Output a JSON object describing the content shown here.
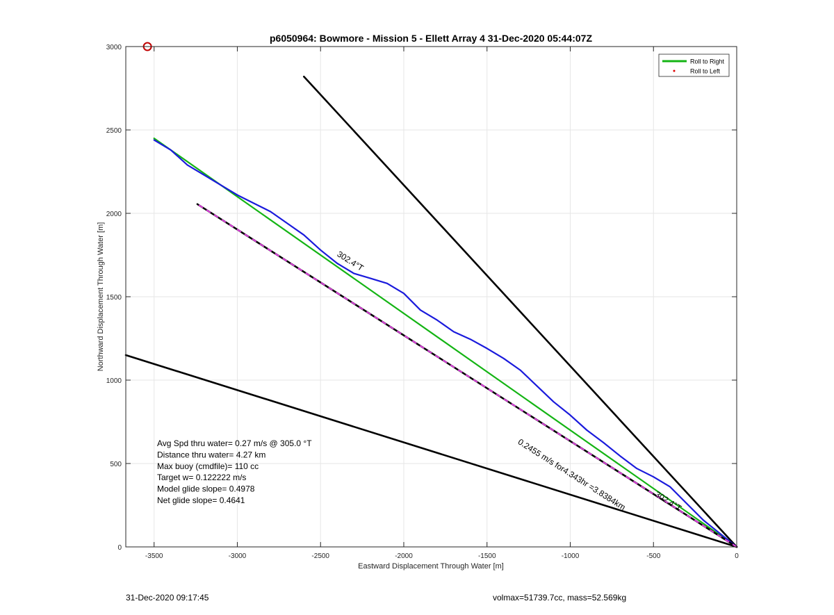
{
  "chart_data": {
    "type": "line",
    "title": "p6050964: Bowmore - Mission 5 - Ellett Array 4 31-Dec-2020 05:44:07Z",
    "xlabel": "Eastward Displacement Through Water [m]",
    "ylabel": "Northward Displacement Through Water [m]",
    "xlim": [
      -3670,
      0
    ],
    "ylim": [
      0,
      3000
    ],
    "xticks": [
      -3500,
      -3000,
      -2500,
      -2000,
      -1500,
      -1000,
      -500,
      0
    ],
    "yticks": [
      0,
      500,
      1000,
      1500,
      2000,
      2500,
      3000
    ],
    "grid": true,
    "legend_position": "top-right",
    "legend": [
      {
        "label": "Roll to Right",
        "color": "#14b414",
        "style": "line"
      },
      {
        "label": "Roll to Left",
        "color": "#e00000",
        "style": "dot"
      }
    ],
    "series": [
      {
        "key": "glider_track",
        "color": "#1a1adc",
        "x": [
          0,
          -100,
          -200,
          -300,
          -400,
          -500,
          -600,
          -700,
          -800,
          -900,
          -1000,
          -1100,
          -1200,
          -1300,
          -1400,
          -1500,
          -1600,
          -1700,
          -1800,
          -1900,
          -2000,
          -2100,
          -2200,
          -2300,
          -2400,
          -2500,
          -2600,
          -2700,
          -2800,
          -2900,
          -3000,
          -3100,
          -3200,
          -3300,
          -3400,
          -3500
        ],
        "y": [
          0,
          80,
          160,
          260,
          360,
          420,
          470,
          545,
          625,
          700,
          790,
          870,
          965,
          1060,
          1130,
          1190,
          1245,
          1290,
          1360,
          1420,
          1520,
          1580,
          1610,
          1640,
          1700,
          1780,
          1870,
          1940,
          2010,
          2060,
          2110,
          2170,
          2230,
          2290,
          2380,
          2440
        ]
      },
      {
        "key": "roll_to_right",
        "name": "Roll to Right",
        "color": "#14b414",
        "x": [
          0,
          -3500
        ],
        "y": [
          0,
          2450
        ]
      },
      {
        "key": "course_line",
        "color": "#000000",
        "dash": "#e040e0",
        "x": [
          0,
          -3240
        ],
        "y": [
          0,
          2055
        ]
      },
      {
        "key": "upper_bound",
        "color": "#000000",
        "x": [
          0,
          -2600
        ],
        "y": [
          0,
          2820
        ]
      },
      {
        "key": "lower_bound",
        "color": "#000000",
        "x": [
          0,
          -3670
        ],
        "y": [
          0,
          1150
        ]
      }
    ],
    "marker": {
      "x": -3540,
      "y": 3000,
      "color": "#c00000"
    },
    "annotations": [
      {
        "text": "302.4°T",
        "x": -2330,
        "y": 1700,
        "angle": 32.4
      },
      {
        "text": "0.2455 m/s for4.343hr =3.8384km",
        "x": -1000,
        "y": 420,
        "angle": 32.4
      },
      {
        "text": "302.4°T",
        "x": -420,
        "y": 260,
        "angle": 32.4
      }
    ],
    "stats": [
      "Avg Spd thru water=  0.27 m/s @ 305.0 °T",
      "Distance thru water=  4.27 km",
      "Max buoy (cmdfile)= 110 cc",
      "Target w= 0.122222 m/s",
      "Model glide slope= 0.4978",
      "Net glide slope= 0.4641"
    ]
  },
  "footer": {
    "left": "31-Dec-2020 09:17:45",
    "right": "volmax=51739.7cc, mass=52.569kg"
  }
}
